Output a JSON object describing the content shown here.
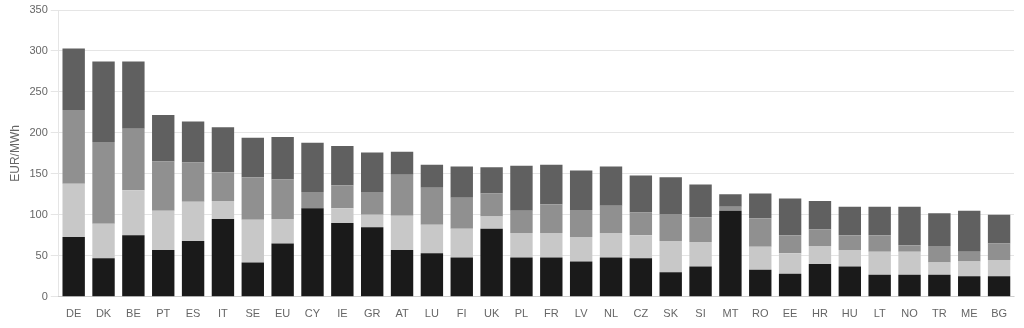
{
  "chart_data": {
    "type": "bar",
    "stacked": true,
    "categories": [
      "DE",
      "DK",
      "BE",
      "PT",
      "ES",
      "IT",
      "SE",
      "EU",
      "CY",
      "IE",
      "GR",
      "AT",
      "LU",
      "FI",
      "UK",
      "PL",
      "FR",
      "LV",
      "NL",
      "CZ",
      "SK",
      "SI",
      "MT",
      "RO",
      "EE",
      "HR",
      "HU",
      "LT",
      "NO",
      "TR",
      "ME",
      "BG"
    ],
    "series": [
      {
        "color": "#1a1a1a",
        "values": [
          73,
          47,
          75,
          57,
          68,
          95,
          42,
          65,
          108,
          90,
          85,
          57,
          53,
          48,
          83,
          48,
          48,
          43,
          48,
          47,
          30,
          37,
          105,
          33,
          28,
          40,
          37,
          27,
          27,
          27,
          25,
          25
        ]
      },
      {
        "color": "#c8c8c8",
        "values": [
          65,
          42,
          55,
          48,
          48,
          22,
          52,
          30,
          0,
          18,
          15,
          42,
          35,
          35,
          15,
          30,
          30,
          30,
          30,
          28,
          38,
          30,
          0,
          28,
          25,
          22,
          20,
          28,
          28,
          15,
          18,
          20
        ]
      },
      {
        "color": "#909090",
        "values": [
          90,
          100,
          75,
          60,
          48,
          35,
          52,
          48,
          20,
          28,
          28,
          50,
          45,
          38,
          28,
          27,
          35,
          33,
          33,
          28,
          33,
          30,
          5,
          35,
          22,
          20,
          18,
          20,
          8,
          20,
          12,
          20
        ]
      },
      {
        "color": "#606060",
        "values": [
          75,
          98,
          82,
          57,
          50,
          55,
          48,
          52,
          60,
          48,
          48,
          28,
          28,
          38,
          32,
          55,
          48,
          48,
          48,
          45,
          45,
          40,
          15,
          30,
          45,
          35,
          35,
          35,
          47,
          40,
          50,
          35
        ]
      }
    ],
    "ylabel": "EUR/MWh",
    "ylim": [
      0,
      350
    ],
    "yticks": [
      0,
      50,
      100,
      150,
      200,
      250,
      300,
      350
    ],
    "grid": "y"
  }
}
